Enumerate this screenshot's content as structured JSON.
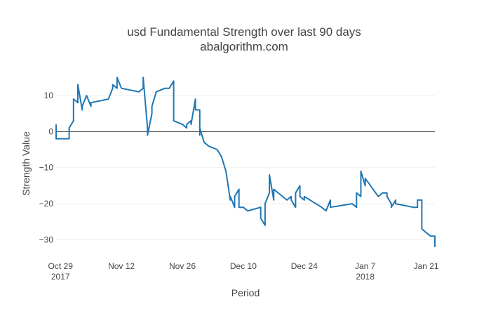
{
  "chart_data": {
    "type": "line",
    "title": "usd Fundamental Strength over last 90 days",
    "subtitle": "abalgorithm.com",
    "xlabel": "Period",
    "ylabel": "Strength Value",
    "xlim": [
      "2017-10-28",
      "2018-01-23"
    ],
    "ylim": [
      -34,
      17
    ],
    "grid": true,
    "legend": "none",
    "color": "#1f77b4",
    "x_ticks": [
      {
        "date": "2017-10-29",
        "label": "Oct 29",
        "sub": "2017"
      },
      {
        "date": "2017-11-12",
        "label": "Nov 12",
        "sub": ""
      },
      {
        "date": "2017-11-26",
        "label": "Nov 26",
        "sub": ""
      },
      {
        "date": "2017-12-10",
        "label": "Dec 10",
        "sub": ""
      },
      {
        "date": "2017-12-24",
        "label": "Dec 24",
        "sub": ""
      },
      {
        "date": "2018-01-07",
        "label": "Jan 7",
        "sub": "2018"
      },
      {
        "date": "2018-01-21",
        "label": "Jan 21",
        "sub": ""
      }
    ],
    "y_ticks": [
      {
        "value": 10,
        "label": "10"
      },
      {
        "value": 0,
        "label": "0"
      },
      {
        "value": -10,
        "label": "−10"
      },
      {
        "value": -20,
        "label": "−20"
      },
      {
        "value": -30,
        "label": "−30"
      }
    ],
    "series": [
      {
        "x": [
          "2017-10-28",
          "2017-10-28",
          "2017-10-31",
          "2017-10-31",
          "2017-11-01",
          "2017-11-01",
          "2017-11-02",
          "2017-11-02",
          "2017-11-03",
          "2017-11-03",
          "2017-11-04",
          "2017-11-05",
          "2017-11-05",
          "2017-11-09",
          "2017-11-10",
          "2017-11-10",
          "2017-11-11",
          "2017-11-11",
          "2017-11-12",
          "2017-11-12",
          "2017-11-16",
          "2017-11-17",
          "2017-11-17",
          "2017-11-18",
          "2017-11-18",
          "2017-11-19",
          "2017-11-19",
          "2017-11-20",
          "2017-11-22",
          "2017-11-23",
          "2017-11-24",
          "2017-11-24",
          "2017-11-24",
          "2017-11-26",
          "2017-11-27",
          "2017-11-27",
          "2017-11-28",
          "2017-11-28",
          "2017-11-29",
          "2017-11-29",
          "2017-11-30",
          "2017-11-30",
          "2017-11-30",
          "2017-12-01",
          "2017-12-02",
          "2017-12-04",
          "2017-12-05",
          "2017-12-06",
          "2017-12-07",
          "2017-12-07",
          "2017-12-08",
          "2017-12-08",
          "2017-12-09",
          "2017-12-09",
          "2017-12-10",
          "2017-12-11",
          "2017-12-14",
          "2017-12-14",
          "2017-12-15",
          "2017-12-15",
          "2017-12-16",
          "2017-12-16",
          "2017-12-17",
          "2017-12-17",
          "2017-12-20",
          "2017-12-21",
          "2017-12-21",
          "2017-12-22",
          "2017-12-22",
          "2017-12-23",
          "2017-12-23",
          "2017-12-24",
          "2017-12-24",
          "2017-12-28",
          "2017-12-29",
          "2017-12-29",
          "2017-12-30",
          "2017-12-30",
          "2018-01-04",
          "2018-01-05",
          "2018-01-05",
          "2018-01-06",
          "2018-01-06",
          "2018-01-07",
          "2018-01-07",
          "2018-01-10",
          "2018-01-11",
          "2018-01-12",
          "2018-01-12",
          "2018-01-13",
          "2018-01-13",
          "2018-01-14",
          "2018-01-14",
          "2018-01-18",
          "2018-01-19",
          "2018-01-19",
          "2018-01-20",
          "2018-01-20",
          "2018-01-21",
          "2018-01-21",
          "2018-01-22",
          "2018-01-23",
          "2018-01-23"
        ],
        "y": [
          2,
          -2,
          -2,
          1,
          3,
          9,
          8,
          13,
          6,
          7,
          10,
          7,
          8,
          9,
          12,
          13,
          12,
          15,
          12,
          12,
          11,
          12,
          15,
          1,
          -1,
          5,
          7,
          11,
          12,
          12,
          14,
          11,
          3,
          2,
          1,
          2,
          3,
          2,
          9,
          6,
          6,
          -1,
          1,
          -3,
          -4,
          -5,
          -7,
          -11,
          -19,
          -18,
          -21,
          -18,
          -16,
          -21,
          -21,
          -22,
          -21,
          -24,
          -26,
          -20,
          -17,
          -12,
          -19,
          -16,
          -19,
          -18,
          -19,
          -21,
          -17,
          -15,
          -18,
          -19,
          -18,
          -21,
          -22,
          -22,
          -19,
          -21,
          -20,
          -21,
          -17,
          -18,
          -11,
          -15,
          -13,
          -18,
          -17,
          -17,
          -18,
          -20,
          -21,
          -19,
          -20,
          -21,
          -21,
          -19,
          -19,
          -27,
          -28,
          -28,
          -29,
          -29,
          -32
        ]
      }
    ]
  }
}
